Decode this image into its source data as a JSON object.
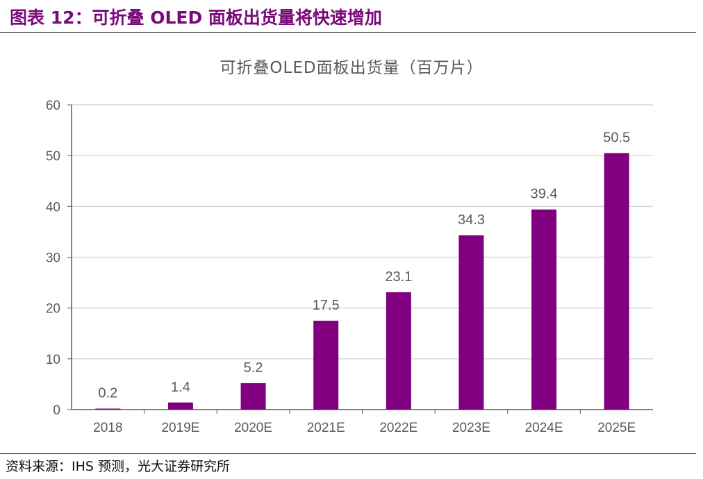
{
  "header": {
    "title": "图表 12：可折叠 OLED 面板出货量将快速增加"
  },
  "footer": {
    "source": "资料来源：IHS 预测，光大证券研究所"
  },
  "colors": {
    "bar": "#800080",
    "title_accent": "#7a0a7a",
    "grid": "#d9d9d9",
    "text": "#595959"
  },
  "chart_data": {
    "type": "bar",
    "title": "可折叠OLED面板出货量（百万片）",
    "categories": [
      "2018",
      "2019E",
      "2020E",
      "2021E",
      "2022E",
      "2023E",
      "2024E",
      "2025E"
    ],
    "values": [
      0.2,
      1.4,
      5.2,
      17.5,
      23.1,
      34.3,
      39.4,
      50.5
    ],
    "data_labels": [
      "0.2",
      "1.4",
      "5.2",
      "17.5",
      "23.1",
      "34.3",
      "39.4",
      "50.5"
    ],
    "yticks": [
      0,
      10,
      20,
      30,
      40,
      50,
      60
    ],
    "ylim": [
      0,
      60
    ],
    "grid": true,
    "legend": "none"
  }
}
